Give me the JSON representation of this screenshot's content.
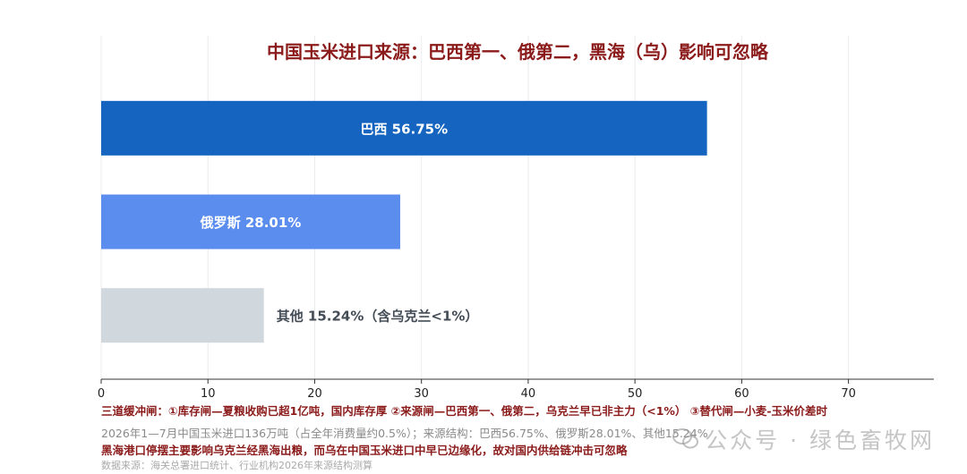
{
  "chart_data": {
    "type": "bar",
    "orientation": "horizontal",
    "title": "中国玉米进口来源：巴西第一、俄第二，黑海（乌）影响可忽略",
    "categories": [
      "巴西",
      "俄罗斯",
      "其他"
    ],
    "values": [
      56.75,
      28.01,
      15.24
    ],
    "bar_labels": [
      "巴西 56.75%",
      "俄罗斯 28.01%",
      "其他 15.24%（含乌克兰<1%）"
    ],
    "bar_colors": [
      "#1565c0",
      "#5b8def",
      "#d0d8de"
    ],
    "label_colors": [
      "#ffffff",
      "#ffffff",
      "#444c56"
    ],
    "label_inside": [
      true,
      true,
      false
    ],
    "x_ticks": [
      "0",
      "10",
      "20",
      "30",
      "40",
      "50",
      "60",
      "70"
    ],
    "xlim": [
      0,
      78
    ],
    "grid": true,
    "xlabel": "",
    "ylabel": ""
  },
  "title_color": "#8b1a1a",
  "notes": {
    "line1": "三道缓冲闸：①库存闸—夏粮收购已超1亿吨，国内库存厚   ②来源闸—巴西第一、俄第二，乌克兰早已非主力（<1%）   ③替代闸—小麦-玉米价差时",
    "line2": "2026年1—7月中国玉米进口136万吨（占全年消费量约0.5%）；来源结构：巴西56.75%、俄罗斯28.01%、其他15.24%",
    "line3": "黑海港口停摆主要影响乌克兰经黑海出粮，而乌在中国玉米进口中早已边缘化，故对国内供给链冲击可忽略",
    "source": "数据来源：海关总署进口统计、行业机构2026年来源结构测算"
  },
  "watermark": {
    "text": "公众号 · 绿色畜牧网",
    "icon": "wechat-icon"
  }
}
